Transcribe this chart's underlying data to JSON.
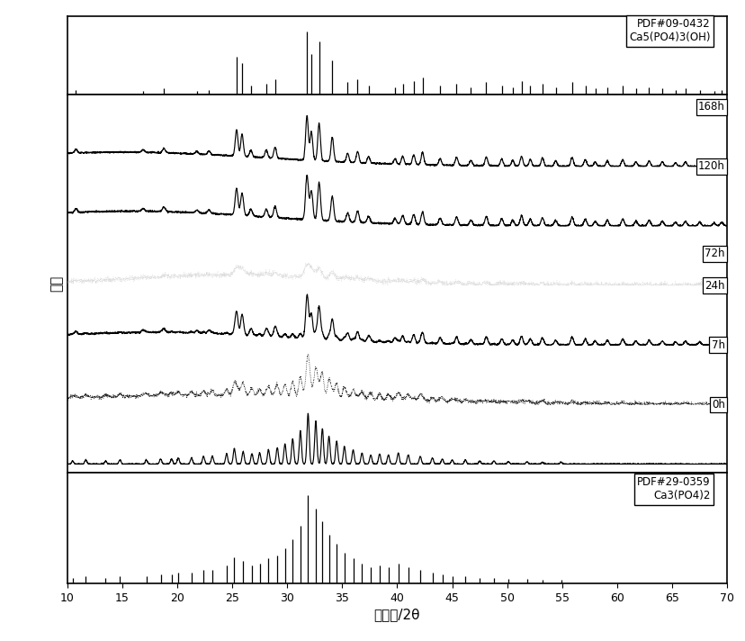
{
  "xlim": [
    10,
    70
  ],
  "xlabel": "衍射角/2θ",
  "ylabel": "强度",
  "xticks": [
    10,
    15,
    20,
    25,
    30,
    35,
    40,
    45,
    50,
    55,
    60,
    65,
    70
  ],
  "hap_label": "PDF#09-0432\nCa5(PO4)3(OH)",
  "atcp_label": "PDF#29-0359\nCa3(PO4)2",
  "hap_peaks": [
    10.8,
    16.9,
    18.8,
    21.8,
    22.9,
    25.4,
    25.9,
    26.7,
    28.1,
    28.9,
    31.8,
    32.2,
    32.9,
    34.1,
    35.5,
    36.4,
    37.4,
    39.8,
    40.5,
    41.5,
    42.3,
    43.9,
    45.4,
    46.7,
    48.1,
    49.5,
    50.5,
    51.3,
    52.1,
    53.2,
    54.4,
    55.9,
    57.1,
    58.0,
    59.1,
    60.5,
    61.7,
    62.9,
    64.1,
    65.3,
    66.2,
    67.5,
    68.8,
    69.5
  ],
  "hap_heights": [
    0.08,
    0.06,
    0.1,
    0.06,
    0.08,
    0.6,
    0.5,
    0.15,
    0.18,
    0.25,
    1.0,
    0.65,
    0.85,
    0.55,
    0.2,
    0.25,
    0.15,
    0.12,
    0.18,
    0.22,
    0.28,
    0.15,
    0.18,
    0.12,
    0.2,
    0.15,
    0.12,
    0.22,
    0.15,
    0.18,
    0.12,
    0.2,
    0.15,
    0.1,
    0.12,
    0.15,
    0.1,
    0.12,
    0.1,
    0.08,
    0.1,
    0.08,
    0.06,
    0.08
  ],
  "atcp_peaks": [
    10.5,
    11.7,
    13.5,
    14.8,
    17.2,
    18.5,
    19.5,
    20.1,
    21.3,
    22.4,
    23.2,
    24.5,
    25.2,
    26.0,
    26.8,
    27.5,
    28.3,
    29.1,
    29.8,
    30.5,
    31.2,
    31.9,
    32.6,
    33.2,
    33.8,
    34.5,
    35.2,
    36.0,
    36.8,
    37.6,
    38.4,
    39.2,
    40.1,
    41.0,
    42.1,
    43.2,
    44.1,
    45.0,
    46.2,
    47.5,
    48.8,
    50.1,
    51.8,
    53.2,
    54.9
  ],
  "atcp_heights": [
    0.06,
    0.08,
    0.06,
    0.08,
    0.08,
    0.1,
    0.1,
    0.12,
    0.12,
    0.15,
    0.15,
    0.2,
    0.3,
    0.25,
    0.2,
    0.22,
    0.28,
    0.32,
    0.4,
    0.5,
    0.65,
    1.0,
    0.85,
    0.7,
    0.55,
    0.45,
    0.35,
    0.28,
    0.22,
    0.18,
    0.2,
    0.18,
    0.22,
    0.18,
    0.15,
    0.12,
    0.1,
    0.08,
    0.08,
    0.06,
    0.06,
    0.05,
    0.05,
    0.04,
    0.04
  ],
  "labels": [
    "168h",
    "120h",
    "72h",
    "24h",
    "7h",
    "0h"
  ],
  "background_color": "#ffffff",
  "line_color": "#000000"
}
